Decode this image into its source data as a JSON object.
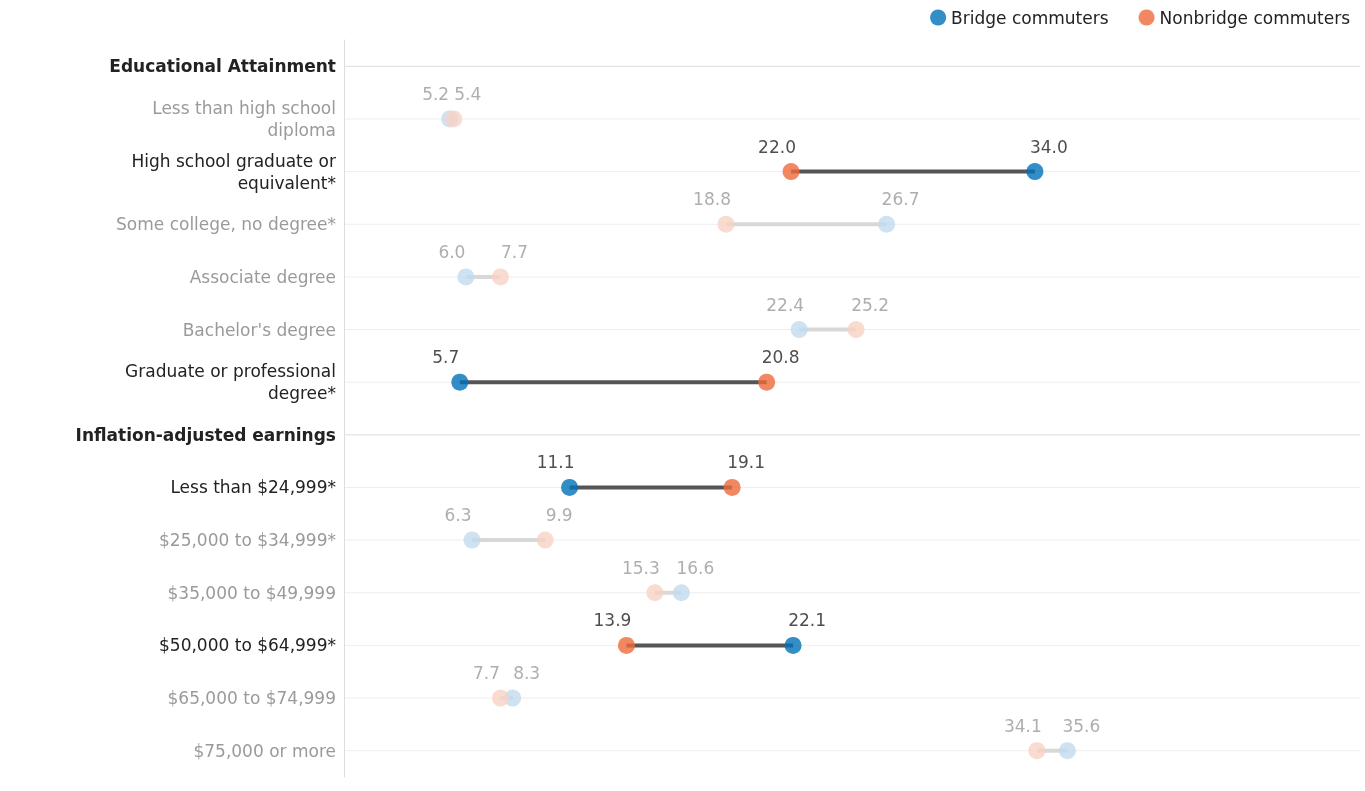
{
  "chart_data": {
    "type": "scatter",
    "orientation": "horizontal",
    "categories": [
      "Educational Attainment",
      "Less than high school diploma",
      "High school graduate or equivalent*",
      "Some college, no degree*",
      "Associate degree",
      "Bachelor's degree",
      "Graduate or professional degree*",
      "Inflation-adjusted earnings",
      "Less than $24,999*",
      "$25,000 to $34,999*",
      "$35,000 to $49,999",
      "$50,000 to $64,999*",
      "$65,000 to $74,999",
      "$75,000 or more"
    ],
    "series": [
      {
        "name": "Bridge commuters",
        "color": "#0070b8",
        "values": [
          null,
          5.2,
          34.0,
          26.7,
          6.0,
          22.4,
          5.7,
          null,
          11.1,
          6.3,
          16.6,
          22.1,
          8.3,
          35.6
        ],
        "value_labels": [
          null,
          "5.2",
          "34.0",
          "26.7",
          "6.0",
          "22.4",
          "5.7",
          null,
          "11.1",
          "6.3",
          "16.6",
          "22.1",
          "8.3",
          "35.6"
        ],
        "colors": [
          null,
          "#c3dbee",
          "#0070b8",
          "#c3dbee",
          "#c3dbee",
          "#c3dbee",
          "#0070b8",
          null,
          "#0070b8",
          "#c3dbee",
          "#c3dbee",
          "#0070b8",
          "#c3dbee",
          "#c3dbee"
        ]
      },
      {
        "name": "Nonbridge commuters",
        "color": "#ef6a3a",
        "values": [
          null,
          5.4,
          22.0,
          18.8,
          7.7,
          25.2,
          20.8,
          null,
          19.1,
          9.9,
          15.3,
          13.9,
          7.7,
          34.1
        ],
        "value_labels": [
          null,
          "5.4",
          "22.0",
          "18.8",
          "7.7",
          "25.2",
          "20.8",
          null,
          "19.1",
          "9.9",
          "15.3",
          "13.9",
          "7.7",
          "34.1"
        ],
        "colors": [
          null,
          "#f8d2c4",
          "#ef6a3a",
          "#f8d2c4",
          "#f8d2c4",
          "#f8d2c4",
          "#ef6a3a",
          null,
          "#ef6a3a",
          "#f8d2c4",
          "#f8d2c4",
          "#ef6a3a",
          "#f8d2c4",
          "#f8d2c4"
        ]
      }
    ],
    "xlim": [
      0,
      50
    ],
    "tick_labels": "y",
    "grid": "y",
    "legend": "top right",
    "marker": "circle"
  }
}
